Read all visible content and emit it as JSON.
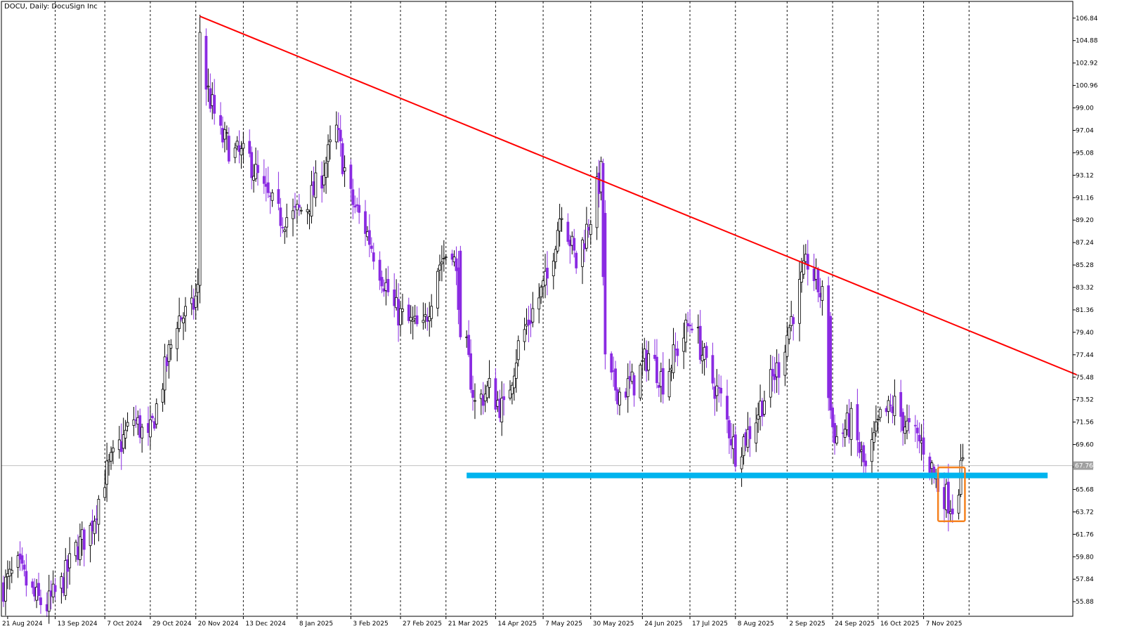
{
  "header": {
    "symbol": "DOCU",
    "timeframe": "Daily:",
    "name": "DocuSign Inc"
  },
  "colors": {
    "bull": "#000000",
    "bear": "#8a2be2",
    "grid": "#000000",
    "trendline": "#ff0000",
    "support": "#00b4ee",
    "highlight": "#f58220",
    "current_price_label": "#a0a0a0"
  },
  "chart_data": {
    "type": "candlestick",
    "y_axis_ticks": [
      "106.84",
      "104.88",
      "102.92",
      "100.96",
      "99.00",
      "97.04",
      "95.08",
      "93.12",
      "91.16",
      "89.20",
      "87.24",
      "85.28",
      "83.32",
      "81.36",
      "79.40",
      "77.44",
      "75.48",
      "73.52",
      "71.56",
      "69.60",
      "67.64",
      "65.68",
      "63.72",
      "61.76",
      "59.80",
      "57.84",
      "55.88"
    ],
    "ylim": [
      54.6,
      108.3
    ],
    "x_axis_ticks": [
      "21 Aug 2024",
      "13 Sep 2024",
      "7 Oct 2024",
      "29 Oct 2024",
      "20 Nov 2024",
      "13 Dec 2024",
      "8 Jan 2025",
      "3 Feb 2025",
      "27 Feb 2025",
      "21 Mar 2025",
      "14 Apr 2025",
      "7 May 2025",
      "30 May 2025",
      "24 Jun 2025",
      "17 Jul 2025",
      "8 Aug 2025",
      "2 Sep 2025",
      "24 Sep 2025",
      "16 Oct 2025",
      "7 Nov 2025"
    ],
    "current_price": 67.76,
    "current_price_label": "67.76",
    "support_level": 66.9,
    "trendline": {
      "start": {
        "date": "2024-11-22",
        "price": 107.0
      },
      "end": {
        "date": "2026-01-20",
        "price": 75.7
      }
    },
    "highlight_box": {
      "from_date": "2025-11-14",
      "to_date": "2025-11-27",
      "top": 67.6,
      "bottom": 62.9
    },
    "close_anchors": [
      [
        "2024-08-19",
        57.2
      ],
      [
        "2024-08-26",
        58.8
      ],
      [
        "2024-09-03",
        56.2
      ],
      [
        "2024-09-09",
        55.5
      ],
      [
        "2024-09-16",
        57.3
      ],
      [
        "2024-09-23",
        60.4
      ],
      [
        "2024-09-30",
        62.2
      ],
      [
        "2024-10-07",
        66.8
      ],
      [
        "2024-10-14",
        69.4
      ],
      [
        "2024-10-21",
        71.9
      ],
      [
        "2024-10-28",
        69.8
      ],
      [
        "2024-11-04",
        75.2
      ],
      [
        "2024-11-11",
        80.6
      ],
      [
        "2024-11-18",
        81.2
      ],
      [
        "2024-11-21",
        83.0
      ],
      [
        "2024-11-22",
        105.0
      ],
      [
        "2024-11-25",
        101.0
      ],
      [
        "2024-12-02",
        96.5
      ],
      [
        "2024-12-09",
        95.0
      ],
      [
        "2024-12-16",
        94.5
      ],
      [
        "2024-12-23",
        91.6
      ],
      [
        "2024-12-30",
        89.5
      ],
      [
        "2025-01-06",
        89.5
      ],
      [
        "2025-01-13",
        90.5
      ],
      [
        "2025-01-20",
        93.2
      ],
      [
        "2025-01-27",
        97.0
      ],
      [
        "2025-02-03",
        91.0
      ],
      [
        "2025-02-10",
        88.5
      ],
      [
        "2025-02-17",
        85.0
      ],
      [
        "2025-02-24",
        81.4
      ],
      [
        "2025-03-03",
        80.2
      ],
      [
        "2025-03-10",
        79.5
      ],
      [
        "2025-03-17",
        85.2
      ],
      [
        "2025-03-24",
        87.0
      ],
      [
        "2025-03-28",
        81.2
      ],
      [
        "2025-04-04",
        73.1
      ],
      [
        "2025-04-11",
        74.5
      ],
      [
        "2025-04-18",
        72.5
      ],
      [
        "2025-04-25",
        78.2
      ],
      [
        "2025-05-02",
        81.3
      ],
      [
        "2025-05-09",
        84.0
      ],
      [
        "2025-05-16",
        90.5
      ],
      [
        "2025-05-23",
        85.3
      ],
      [
        "2025-05-30",
        89.6
      ],
      [
        "2025-06-04",
        93.2
      ],
      [
        "2025-06-06",
        75.6
      ],
      [
        "2025-06-13",
        74.2
      ],
      [
        "2025-06-20",
        75.0
      ],
      [
        "2025-06-27",
        77.5
      ],
      [
        "2025-07-04",
        75.2
      ],
      [
        "2025-07-11",
        78.0
      ],
      [
        "2025-07-18",
        80.6
      ],
      [
        "2025-07-25",
        76.3
      ],
      [
        "2025-08-01",
        73.5
      ],
      [
        "2025-08-08",
        69.0
      ],
      [
        "2025-08-15",
        70.8
      ],
      [
        "2025-08-22",
        73.8
      ],
      [
        "2025-08-29",
        76.5
      ],
      [
        "2025-09-05",
        81.3
      ],
      [
        "2025-09-12",
        85.6
      ],
      [
        "2025-09-19",
        82.4
      ],
      [
        "2025-09-23",
        71.6
      ],
      [
        "2025-09-26",
        70.2
      ],
      [
        "2025-10-03",
        71.5
      ],
      [
        "2025-10-10",
        67.3
      ],
      [
        "2025-10-17",
        71.8
      ],
      [
        "2025-10-24",
        73.0
      ],
      [
        "2025-10-31",
        70.8
      ],
      [
        "2025-11-07",
        69.5
      ],
      [
        "2025-11-14",
        66.0
      ],
      [
        "2025-11-21",
        64.3
      ],
      [
        "2025-11-26",
        67.8
      ]
    ]
  }
}
